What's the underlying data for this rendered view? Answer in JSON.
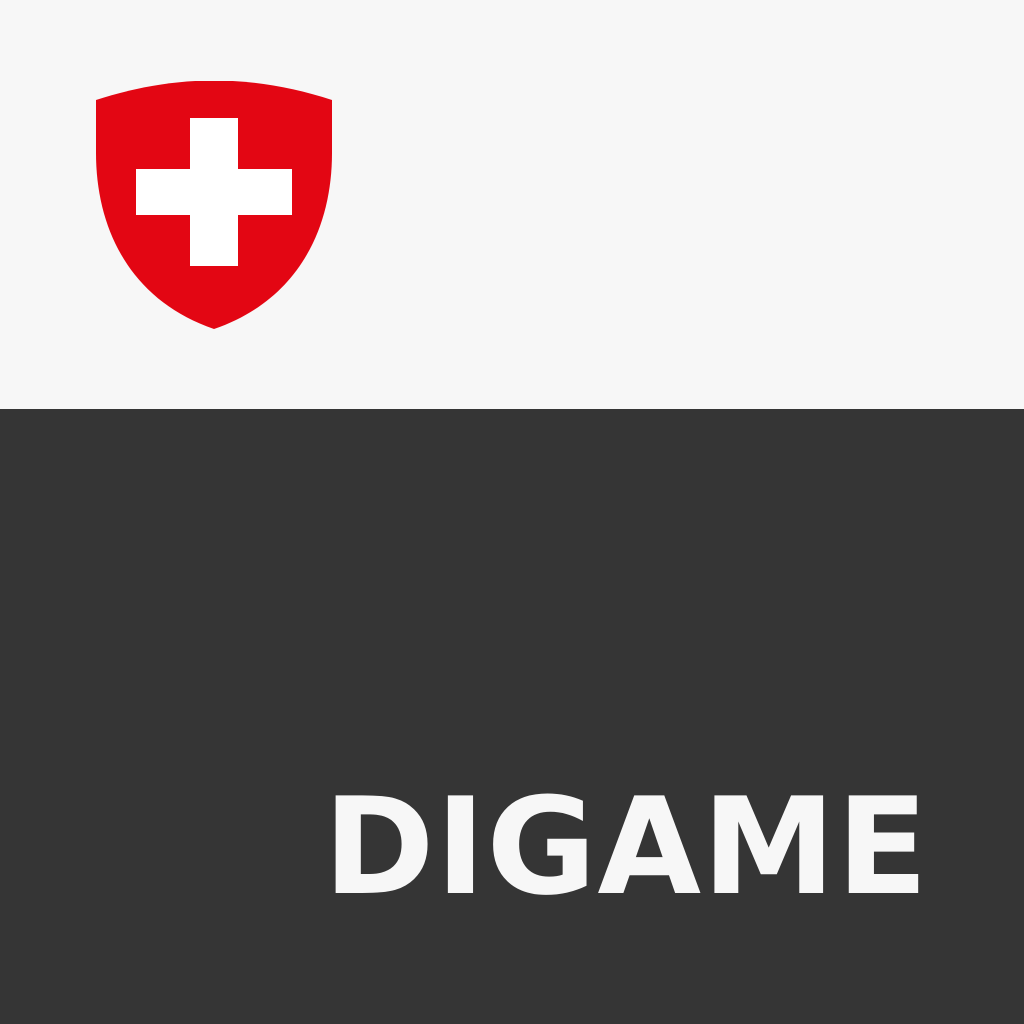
{
  "app": {
    "name": "DIGAME"
  },
  "emblem": {
    "icon": "swiss-coat-of-arms-icon"
  },
  "colors": {
    "top_background": "#f7f7f7",
    "bottom_background": "#353535",
    "shield_red": "#e30613",
    "cross_white": "#ffffff",
    "text": "#f7f7f7"
  }
}
